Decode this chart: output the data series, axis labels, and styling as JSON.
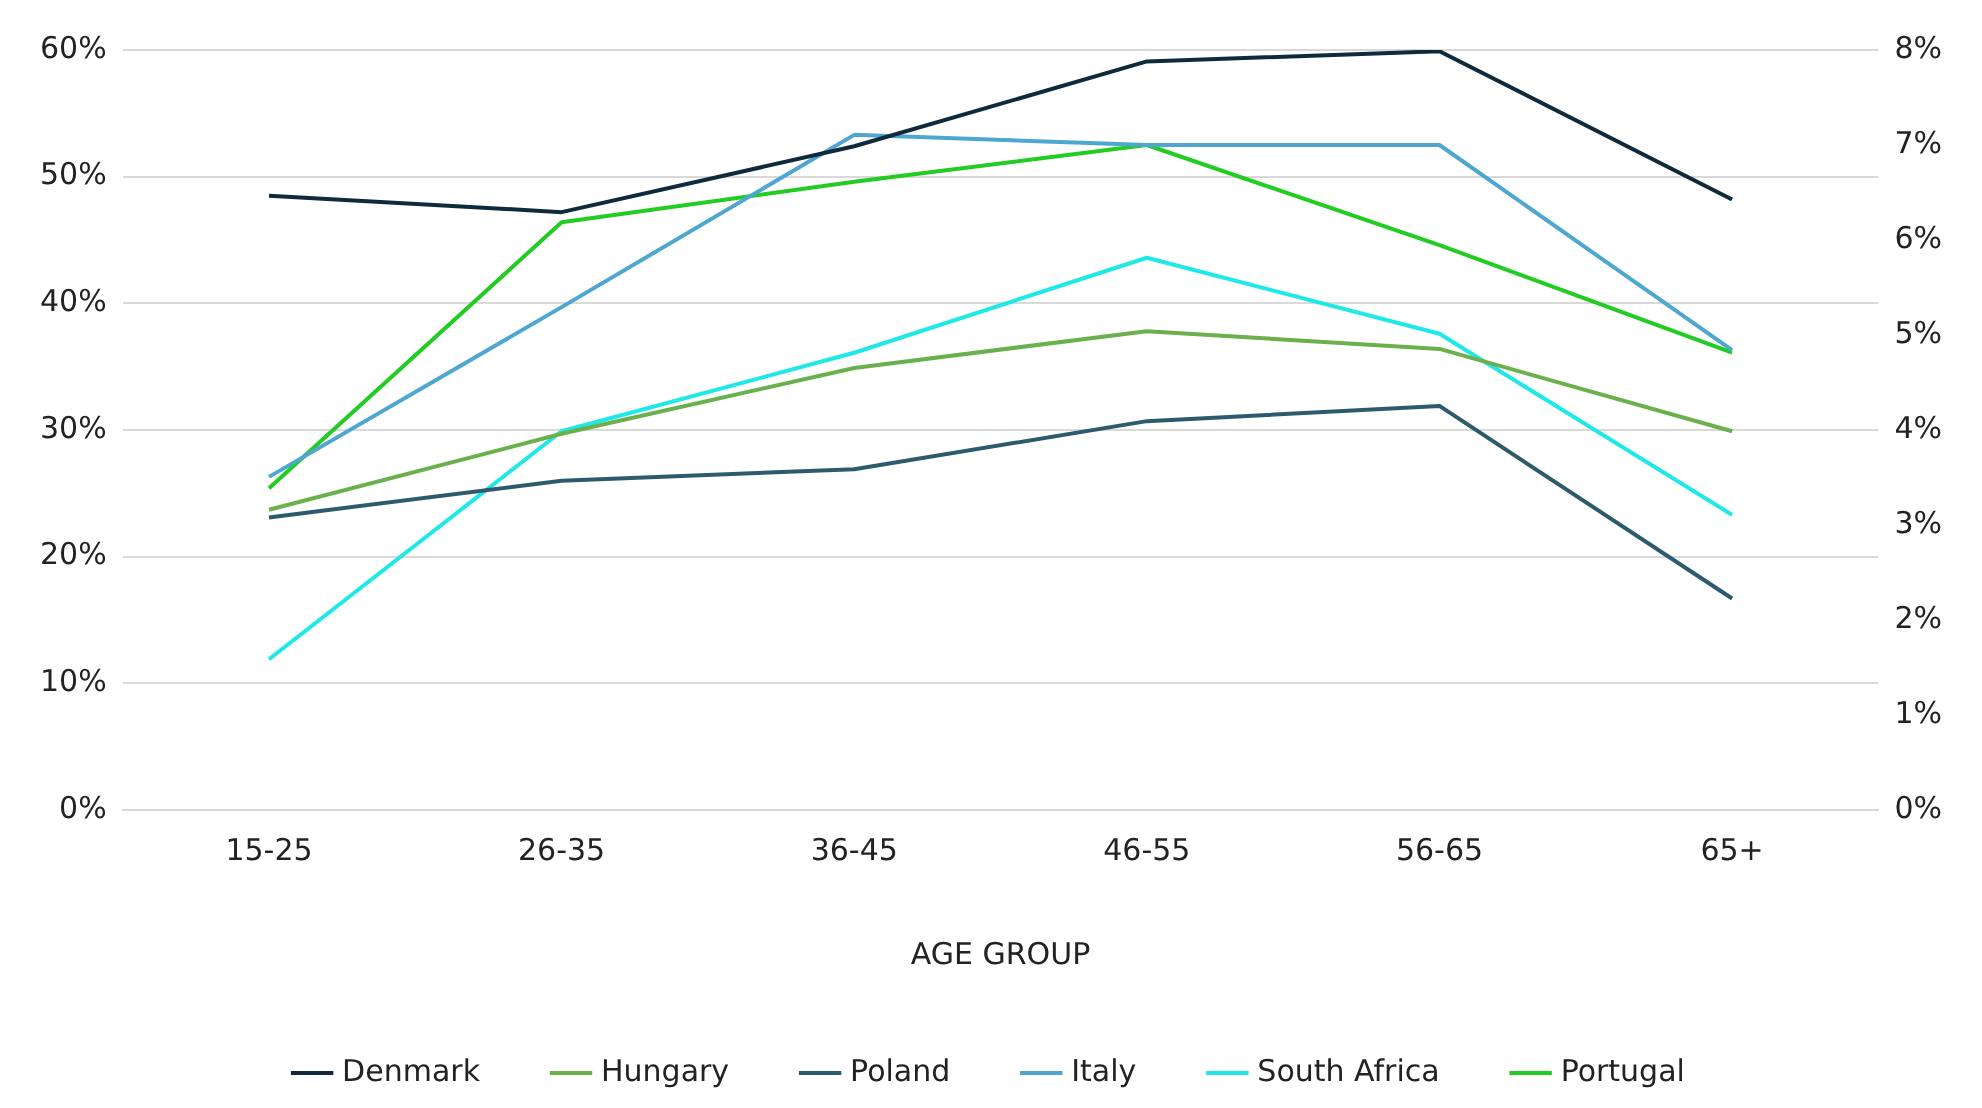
{
  "chart_data": {
    "type": "line",
    "xlabel": "AGE GROUP",
    "categories": [
      "15-25",
      "26-35",
      "36-45",
      "46-55",
      "56-65",
      "65+"
    ],
    "series": [
      {
        "name": "Denmark",
        "color": "#0e2a3b",
        "values": [
          48.5,
          47.2,
          52.4,
          59.1,
          59.9,
          48.2
        ]
      },
      {
        "name": "Hungary",
        "color": "#6ab04c",
        "values": [
          23.7,
          29.7,
          34.9,
          37.8,
          36.4,
          29.9
        ]
      },
      {
        "name": "Poland",
        "color": "#2e5a6e",
        "values": [
          23.1,
          26.0,
          26.9,
          30.7,
          31.9,
          16.7
        ]
      },
      {
        "name": "Italy",
        "color": "#4ea7d0",
        "values": [
          26.3,
          39.7,
          53.3,
          52.5,
          52.5,
          36.3
        ]
      },
      {
        "name": "South Africa",
        "color": "#1ee8e8",
        "values": [
          11.9,
          29.9,
          36.1,
          43.6,
          37.6,
          23.3
        ]
      },
      {
        "name": "Portugal",
        "color": "#22cc22",
        "values": [
          25.4,
          46.4,
          49.6,
          52.5,
          44.6,
          36.1
        ]
      }
    ],
    "ylim": [
      0,
      60
    ],
    "yticks": [
      {
        "value": 0,
        "label": "0%"
      },
      {
        "value": 10,
        "label": "10%"
      },
      {
        "value": 20,
        "label": "20%"
      },
      {
        "value": 30,
        "label": "30%"
      },
      {
        "value": 40,
        "label": "40%"
      },
      {
        "value": 50,
        "label": "50%"
      },
      {
        "value": 60,
        "label": "60%"
      }
    ],
    "y2lim": [
      0,
      8
    ],
    "y2ticks": [
      {
        "value": 0,
        "label": "0%"
      },
      {
        "value": 1,
        "label": "1%"
      },
      {
        "value": 2,
        "label": "2%"
      },
      {
        "value": 3,
        "label": "3%"
      },
      {
        "value": 4,
        "label": "4%"
      },
      {
        "value": 5,
        "label": "5%"
      },
      {
        "value": 6,
        "label": "6%"
      },
      {
        "value": 7,
        "label": "7%"
      },
      {
        "value": 8,
        "label": "8%"
      }
    ],
    "grid": "y",
    "legend": "bottom",
    "marker": "none",
    "line_style": "solid"
  }
}
